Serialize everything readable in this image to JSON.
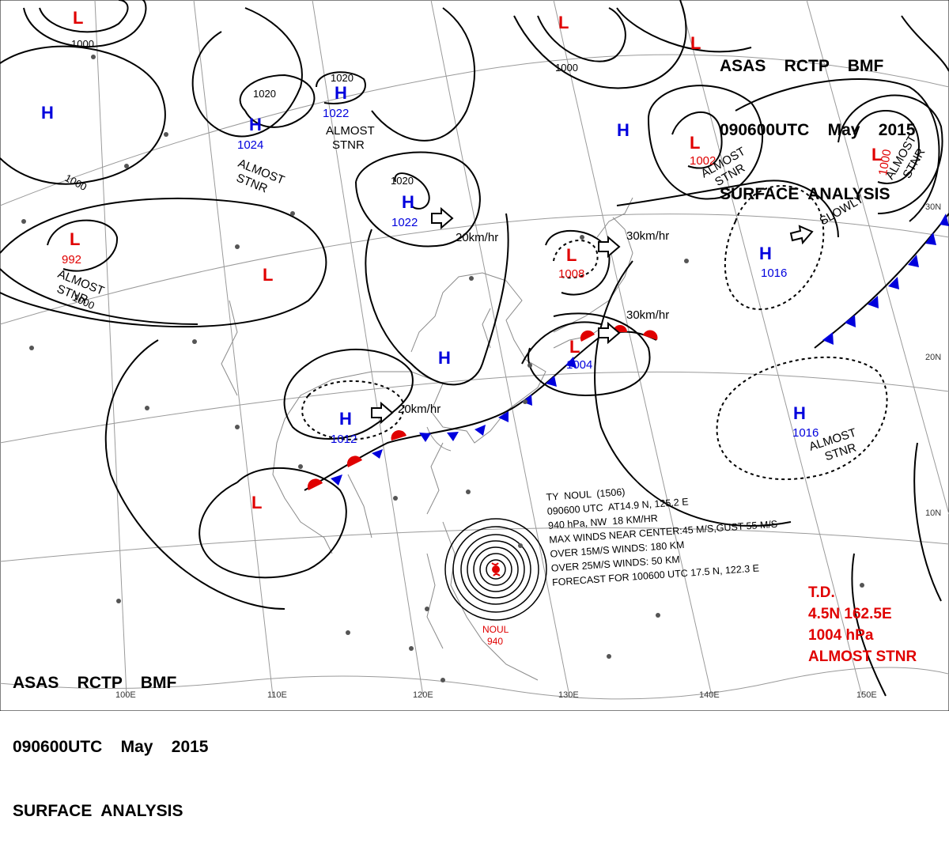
{
  "header": {
    "line1": "ASAS    RCTP    BMF",
    "line2": "090600UTC    May    2015",
    "line3": "SURFACE  ANALYSIS"
  },
  "footer": {
    "line1": "ASAS    RCTP    BMF",
    "line2": "090600UTC    May    2015",
    "line3": "SURFACE  ANALYSIS"
  },
  "colors": {
    "high": "#0000dd",
    "low": "#e00000",
    "isobar": "#000000",
    "grid": "#999999",
    "coast": "#888888"
  },
  "grid_labels": {
    "lon": [
      "100E",
      "110E",
      "120E",
      "130E",
      "140E",
      "150E"
    ],
    "lat": [
      "30N",
      "20N",
      "10N"
    ]
  },
  "pressure_centers": [
    {
      "type": "L",
      "value": ""
    },
    {
      "type": "H",
      "value": ""
    },
    {
      "type": "H",
      "value": "1024"
    },
    {
      "type": "H",
      "value": "1022"
    },
    {
      "type": "H",
      "value": "1022"
    },
    {
      "type": "L",
      "value": "992"
    },
    {
      "type": "L",
      "value": ""
    },
    {
      "type": "H",
      "value": ""
    },
    {
      "type": "H",
      "value": "1012"
    },
    {
      "type": "L",
      "value": ""
    },
    {
      "type": "L",
      "value": "1008"
    },
    {
      "type": "L",
      "value": "1004"
    },
    {
      "type": "L",
      "value": ""
    },
    {
      "type": "H",
      "value": ""
    },
    {
      "type": "L",
      "value": "1002"
    },
    {
      "type": "L",
      "value": "1000"
    },
    {
      "type": "L",
      "value": ""
    },
    {
      "type": "H",
      "value": "1016"
    },
    {
      "type": "H",
      "value": "1016"
    }
  ],
  "isobar_labels": [
    "1000",
    "1000",
    "1020",
    "1020",
    "1020",
    "1000",
    "1000"
  ],
  "annotations": [
    "ALMOST\nSTNR",
    "ALMOST\nSTNR",
    "ALMOST\nSTNR",
    "ALMOST\nSTNR",
    "ALMOST\nSTNR",
    "ALMOST\nSTNR",
    "SLOWLY"
  ],
  "motions": [
    "20km/hr",
    "20km/hr",
    "30km/hr",
    "30km/hr"
  ],
  "typhoon": {
    "name": "NOUL",
    "pressure": "940",
    "lines": [
      "TY  NOUL  (1506)",
      "090600 UTC  AT14.9 N, 125.2 E",
      "940 hPa, NW  18 KM/HR",
      "MAX WINDS NEAR CENTER:45 M/S,GUST 55 M/S",
      "OVER 15M/S WINDS: 180 KM",
      "OVER 25M/S WINDS: 50 KM",
      "FORECAST FOR 100600 UTC 17.5 N, 122.3 E"
    ]
  },
  "td": {
    "lines": [
      "T.D.",
      "4.5N 162.5E",
      "1004 hPa",
      "ALMOST STNR"
    ]
  }
}
